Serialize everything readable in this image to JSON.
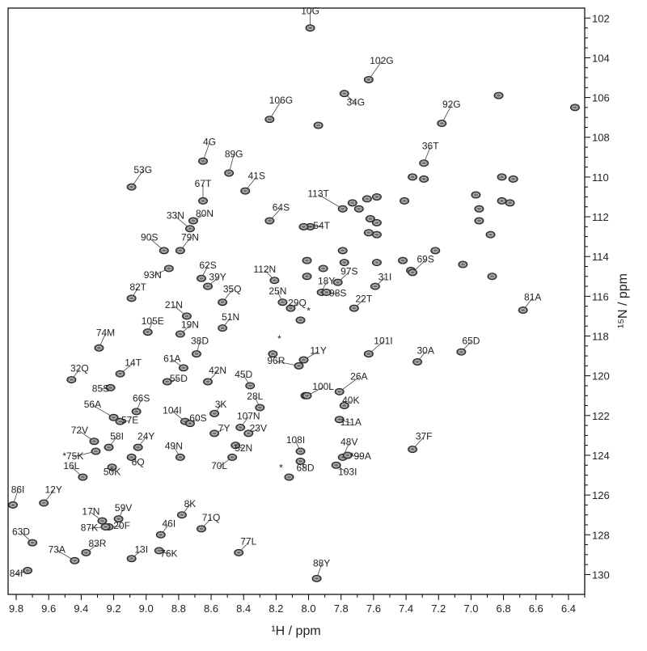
{
  "chart_data": {
    "type": "scatter",
    "xlabel": "¹H / ppm",
    "ylabel": "¹⁵N / ppm",
    "xlim": [
      9.85,
      6.3
    ],
    "ylim": [
      101.5,
      131
    ],
    "x_ticks": [
      "9.8",
      "9.6",
      "9.4",
      "9.2",
      "9.0",
      "8.8",
      "8.6",
      "8.4",
      "8.2",
      "8.0",
      "7.8",
      "7.6",
      "7.4",
      "7.2",
      "7.0",
      "6.8",
      "6.6",
      "6.4"
    ],
    "y_ticks": [
      "102",
      "104",
      "106",
      "108",
      "110",
      "112",
      "114",
      "116",
      "118",
      "120",
      "122",
      "124",
      "126",
      "128",
      "130"
    ],
    "labeled_peaks": [
      {
        "label": "10G",
        "x": 7.99,
        "y": 102.5,
        "lx": 7.99,
        "ly": 101.8
      },
      {
        "label": "102G",
        "x": 7.63,
        "y": 105.1,
        "lx": 7.55,
        "ly": 104.3
      },
      {
        "label": "34G",
        "x": 7.78,
        "y": 105.8,
        "lx": 7.71,
        "ly": 106.4
      },
      {
        "label": "106G",
        "x": 8.24,
        "y": 107.1,
        "lx": 8.17,
        "ly": 106.3
      },
      {
        "label": "92G",
        "x": 7.18,
        "y": 107.3,
        "lx": 7.12,
        "ly": 106.5
      },
      {
        "label": "36T",
        "x": 7.29,
        "y": 109.3,
        "lx": 7.25,
        "ly": 108.6
      },
      {
        "label": "4G",
        "x": 8.65,
        "y": 109.2,
        "lx": 8.61,
        "ly": 108.4
      },
      {
        "label": "89G",
        "x": 8.49,
        "y": 109.8,
        "lx": 8.46,
        "ly": 109.0
      },
      {
        "label": "53G",
        "x": 9.09,
        "y": 110.5,
        "lx": 9.02,
        "ly": 109.8
      },
      {
        "label": "41S",
        "x": 8.39,
        "y": 110.7,
        "lx": 8.32,
        "ly": 110.1
      },
      {
        "label": "67T",
        "x": 8.65,
        "y": 111.2,
        "lx": 8.65,
        "ly": 110.5
      },
      {
        "label": "113T",
        "x": 7.79,
        "y": 111.6,
        "lx": 7.94,
        "ly": 111.0
      },
      {
        "label": "33N",
        "x": 8.73,
        "y": 112.6,
        "lx": 8.82,
        "ly": 112.1
      },
      {
        "label": "80N",
        "x": 8.71,
        "y": 112.2,
        "lx": 8.64,
        "ly": 112.0
      },
      {
        "label": "64S",
        "x": 8.24,
        "y": 112.2,
        "lx": 8.17,
        "ly": 111.7
      },
      {
        "label": "54T",
        "x": 8.03,
        "y": 112.5,
        "lx": 7.92,
        "ly": 112.6
      },
      {
        "label": "90S",
        "x": 8.89,
        "y": 113.7,
        "lx": 8.98,
        "ly": 113.2
      },
      {
        "label": "79N",
        "x": 8.79,
        "y": 113.7,
        "lx": 8.73,
        "ly": 113.2
      },
      {
        "label": "69S",
        "x": 7.36,
        "y": 114.8,
        "lx": 7.28,
        "ly": 114.3
      },
      {
        "label": "93N",
        "x": 8.86,
        "y": 114.6,
        "lx": 8.96,
        "ly": 115.1
      },
      {
        "label": "62S",
        "x": 8.66,
        "y": 115.1,
        "lx": 8.62,
        "ly": 114.6
      },
      {
        "label": "39Y",
        "x": 8.62,
        "y": 115.5,
        "lx": 8.56,
        "ly": 115.2
      },
      {
        "label": "112N",
        "x": 8.21,
        "y": 115.2,
        "lx": 8.27,
        "ly": 114.8
      },
      {
        "label": "97S",
        "x": 7.82,
        "y": 115.3,
        "lx": 7.75,
        "ly": 114.9
      },
      {
        "label": "31I",
        "x": 7.59,
        "y": 115.5,
        "lx": 7.53,
        "ly": 115.2
      },
      {
        "label": "18Y",
        "x": 7.92,
        "y": 115.8,
        "lx": 7.89,
        "ly": 115.4
      },
      {
        "label": "82T",
        "x": 9.09,
        "y": 116.1,
        "lx": 9.05,
        "ly": 115.7
      },
      {
        "label": "35Q",
        "x": 8.53,
        "y": 116.3,
        "lx": 8.47,
        "ly": 115.8
      },
      {
        "label": "25N",
        "x": 8.16,
        "y": 116.3,
        "lx": 8.19,
        "ly": 115.9
      },
      {
        "label": "98S",
        "x": 7.89,
        "y": 115.8,
        "lx": 7.82,
        "ly": 116.0
      },
      {
        "label": "29Q",
        "x": 8.11,
        "y": 116.6,
        "lx": 8.07,
        "ly": 116.5
      },
      {
        "label": "22T",
        "x": 7.72,
        "y": 116.6,
        "lx": 7.66,
        "ly": 116.3
      },
      {
        "label": "81A",
        "x": 6.68,
        "y": 116.7,
        "lx": 6.62,
        "ly": 116.2
      },
      {
        "label": "21N",
        "x": 8.75,
        "y": 117.0,
        "lx": 8.83,
        "ly": 116.6
      },
      {
        "label": "51N",
        "x": 8.53,
        "y": 117.6,
        "lx": 8.48,
        "ly": 117.2
      },
      {
        "label": "105E",
        "x": 8.99,
        "y": 117.8,
        "lx": 8.96,
        "ly": 117.4
      },
      {
        "label": "19N",
        "x": 8.79,
        "y": 117.9,
        "lx": 8.73,
        "ly": 117.6
      },
      {
        "label": "38D",
        "x": 8.69,
        "y": 118.9,
        "lx": 8.67,
        "ly": 118.4
      },
      {
        "label": "74M",
        "x": 9.29,
        "y": 118.6,
        "lx": 9.25,
        "ly": 118.0
      },
      {
        "label": "101I",
        "x": 7.63,
        "y": 118.9,
        "lx": 7.54,
        "ly": 118.4
      },
      {
        "label": "11Y",
        "x": 8.03,
        "y": 119.2,
        "lx": 7.94,
        "ly": 118.9
      },
      {
        "label": "65D",
        "x": 7.06,
        "y": 118.8,
        "lx": 7.0,
        "ly": 118.4
      },
      {
        "label": "30A",
        "x": 7.33,
        "y": 119.3,
        "lx": 7.28,
        "ly": 118.9
      },
      {
        "label": "96R",
        "x": 8.06,
        "y": 119.5,
        "lx": 8.2,
        "ly": 119.4
      },
      {
        "label": "32Q",
        "x": 9.46,
        "y": 120.2,
        "lx": 9.41,
        "ly": 119.8
      },
      {
        "label": "14T",
        "x": 9.16,
        "y": 119.9,
        "lx": 9.08,
        "ly": 119.5
      },
      {
        "label": "61A",
        "x": 8.77,
        "y": 119.6,
        "lx": 8.84,
        "ly": 119.3
      },
      {
        "label": "55D",
        "x": 8.87,
        "y": 120.3,
        "lx": 8.8,
        "ly": 120.3
      },
      {
        "label": "42N",
        "x": 8.62,
        "y": 120.3,
        "lx": 8.56,
        "ly": 119.9
      },
      {
        "label": "45D",
        "x": 8.36,
        "y": 120.5,
        "lx": 8.4,
        "ly": 120.1
      },
      {
        "label": "26A",
        "x": 7.81,
        "y": 120.8,
        "lx": 7.69,
        "ly": 120.2
      },
      {
        "label": "85S",
        "x": 9.22,
        "y": 120.6,
        "lx": 9.28,
        "ly": 120.8
      },
      {
        "label": "100L",
        "x": 8.01,
        "y": 121.0,
        "lx": 7.91,
        "ly": 120.7
      },
      {
        "label": "40K",
        "x": 7.78,
        "y": 121.5,
        "lx": 7.74,
        "ly": 121.4
      },
      {
        "label": "28L",
        "x": 8.3,
        "y": 121.6,
        "lx": 8.33,
        "ly": 121.2
      },
      {
        "label": "56A",
        "x": 9.2,
        "y": 122.1,
        "lx": 9.33,
        "ly": 121.6
      },
      {
        "label": "66S",
        "x": 9.06,
        "y": 121.8,
        "lx": 9.03,
        "ly": 121.3
      },
      {
        "label": "104I",
        "x": 8.76,
        "y": 122.3,
        "lx": 8.84,
        "ly": 121.9
      },
      {
        "label": "3K",
        "x": 8.58,
        "y": 121.9,
        "lx": 8.54,
        "ly": 121.6
      },
      {
        "label": "60S",
        "x": 8.73,
        "y": 122.4,
        "lx": 8.68,
        "ly": 122.3
      },
      {
        "label": "57E",
        "x": 9.16,
        "y": 122.3,
        "lx": 9.1,
        "ly": 122.4
      },
      {
        "label": "107N",
        "x": 8.42,
        "y": 122.6,
        "lx": 8.37,
        "ly": 122.2
      },
      {
        "label": "111A",
        "x": 7.81,
        "y": 122.2,
        "lx": 7.74,
        "ly": 122.5
      },
      {
        "label": "7Y",
        "x": 8.58,
        "y": 122.9,
        "lx": 8.52,
        "ly": 122.8
      },
      {
        "label": "23V",
        "x": 8.37,
        "y": 122.9,
        "lx": 8.31,
        "ly": 122.8
      },
      {
        "label": "72V",
        "x": 9.32,
        "y": 123.3,
        "lx": 9.41,
        "ly": 122.9
      },
      {
        "label": "58I",
        "x": 9.23,
        "y": 123.6,
        "lx": 9.18,
        "ly": 123.2
      },
      {
        "label": "24Y",
        "x": 9.05,
        "y": 123.6,
        "lx": 9.0,
        "ly": 123.2
      },
      {
        "label": "37F",
        "x": 7.36,
        "y": 123.7,
        "lx": 7.29,
        "ly": 123.2
      },
      {
        "label": "48V",
        "x": 7.79,
        "y": 124.1,
        "lx": 7.75,
        "ly": 123.5
      },
      {
        "label": "52N",
        "x": 8.45,
        "y": 123.5,
        "lx": 8.4,
        "ly": 123.8
      },
      {
        "label": "108I",
        "x": 8.05,
        "y": 123.8,
        "lx": 8.08,
        "ly": 123.4
      },
      {
        "label": "49N",
        "x": 8.79,
        "y": 124.1,
        "lx": 8.83,
        "ly": 123.7
      },
      {
        "label": "*75K",
        "x": 9.31,
        "y": 123.8,
        "lx": 9.45,
        "ly": 124.2
      },
      {
        "label": "*99A",
        "x": 7.76,
        "y": 124.0,
        "lx": 7.68,
        "ly": 124.2
      },
      {
        "label": "6Q",
        "x": 9.09,
        "y": 124.1,
        "lx": 9.05,
        "ly": 124.5
      },
      {
        "label": "70L",
        "x": 8.47,
        "y": 124.1,
        "lx": 8.55,
        "ly": 124.7
      },
      {
        "label": "103I",
        "x": 7.83,
        "y": 124.5,
        "lx": 7.76,
        "ly": 125.0
      },
      {
        "label": "50K",
        "x": 9.21,
        "y": 124.6,
        "lx": 9.21,
        "ly": 125.0
      },
      {
        "label": "68D",
        "x": 8.05,
        "y": 124.3,
        "lx": 8.02,
        "ly": 124.8
      },
      {
        "label": "16L",
        "x": 9.39,
        "y": 125.1,
        "lx": 9.46,
        "ly": 124.7
      },
      {
        "label": "86I",
        "x": 9.82,
        "y": 126.5,
        "lx": 9.79,
        "ly": 125.9
      },
      {
        "label": "12Y",
        "x": 9.63,
        "y": 126.4,
        "lx": 9.57,
        "ly": 125.9
      },
      {
        "label": "8K",
        "x": 8.78,
        "y": 127.0,
        "lx": 8.73,
        "ly": 126.6
      },
      {
        "label": "59V",
        "x": 9.17,
        "y": 127.2,
        "lx": 9.14,
        "ly": 126.8
      },
      {
        "label": "17N",
        "x": 9.27,
        "y": 127.3,
        "lx": 9.34,
        "ly": 127.0
      },
      {
        "label": "71Q",
        "x": 8.66,
        "y": 127.7,
        "lx": 8.6,
        "ly": 127.3
      },
      {
        "label": "46I",
        "x": 8.91,
        "y": 128.0,
        "lx": 8.86,
        "ly": 127.6
      },
      {
        "label": "20F",
        "x": 9.23,
        "y": 127.6,
        "lx": 9.15,
        "ly": 127.7
      },
      {
        "label": "87K",
        "x": 9.25,
        "y": 127.6,
        "lx": 9.35,
        "ly": 127.8
      },
      {
        "label": "63D",
        "x": 9.7,
        "y": 128.4,
        "lx": 9.77,
        "ly": 128.0
      },
      {
        "label": "83R",
        "x": 9.37,
        "y": 128.9,
        "lx": 9.3,
        "ly": 128.6
      },
      {
        "label": "73A",
        "x": 9.44,
        "y": 129.3,
        "lx": 9.55,
        "ly": 128.9
      },
      {
        "label": "13I",
        "x": 9.09,
        "y": 129.2,
        "lx": 9.03,
        "ly": 128.9
      },
      {
        "label": "76K",
        "x": 8.92,
        "y": 128.8,
        "lx": 8.86,
        "ly": 129.1
      },
      {
        "label": "77L",
        "x": 8.43,
        "y": 128.9,
        "lx": 8.37,
        "ly": 128.5
      },
      {
        "label": "84I",
        "x": 9.73,
        "y": 129.8,
        "lx": 9.8,
        "ly": 130.1
      },
      {
        "label": "88Y",
        "x": 7.95,
        "y": 130.2,
        "lx": 7.92,
        "ly": 129.6
      }
    ],
    "star_markers": [
      {
        "label": "*",
        "x": 8.05,
        "y": 117.2,
        "lx": 8.0,
        "ly": 116.9
      },
      {
        "label": "*",
        "x": 8.22,
        "y": 118.9,
        "lx": 8.18,
        "ly": 118.3
      },
      {
        "label": "*",
        "x": 8.12,
        "y": 125.1,
        "lx": 8.17,
        "ly": 124.8
      }
    ],
    "unlabeled_peaks": [
      {
        "x": 7.41,
        "y": 111.2
      },
      {
        "x": 7.36,
        "y": 110.0
      },
      {
        "x": 7.29,
        "y": 110.1
      },
      {
        "x": 7.22,
        "y": 113.7
      },
      {
        "x": 7.05,
        "y": 114.4
      },
      {
        "x": 6.97,
        "y": 110.9
      },
      {
        "x": 6.95,
        "y": 111.6
      },
      {
        "x": 6.95,
        "y": 112.2
      },
      {
        "x": 6.88,
        "y": 112.9
      },
      {
        "x": 6.87,
        "y": 115.0
      },
      {
        "x": 6.81,
        "y": 110.0
      },
      {
        "x": 6.81,
        "y": 111.2
      },
      {
        "x": 6.76,
        "y": 111.3
      },
      {
        "x": 6.74,
        "y": 110.1
      },
      {
        "x": 7.73,
        "y": 111.3
      },
      {
        "x": 7.69,
        "y": 111.6
      },
      {
        "x": 7.62,
        "y": 112.1
      },
      {
        "x": 7.58,
        "y": 112.3
      },
      {
        "x": 7.58,
        "y": 112.9
      },
      {
        "x": 7.58,
        "y": 111.0
      },
      {
        "x": 7.64,
        "y": 111.1
      },
      {
        "x": 7.63,
        "y": 112.8
      },
      {
        "x": 7.79,
        "y": 113.7
      },
      {
        "x": 7.78,
        "y": 114.3
      },
      {
        "x": 7.58,
        "y": 114.3
      },
      {
        "x": 7.42,
        "y": 114.2
      },
      {
        "x": 7.37,
        "y": 114.7
      },
      {
        "x": 8.01,
        "y": 114.2
      },
      {
        "x": 8.01,
        "y": 115.0
      },
      {
        "x": 7.91,
        "y": 114.6
      },
      {
        "x": 7.94,
        "y": 107.4
      },
      {
        "x": 6.83,
        "y": 105.9
      },
      {
        "x": 6.36,
        "y": 106.5
      },
      {
        "x": 7.99,
        "y": 112.5
      },
      {
        "x": 8.02,
        "y": 121.0
      }
    ]
  }
}
